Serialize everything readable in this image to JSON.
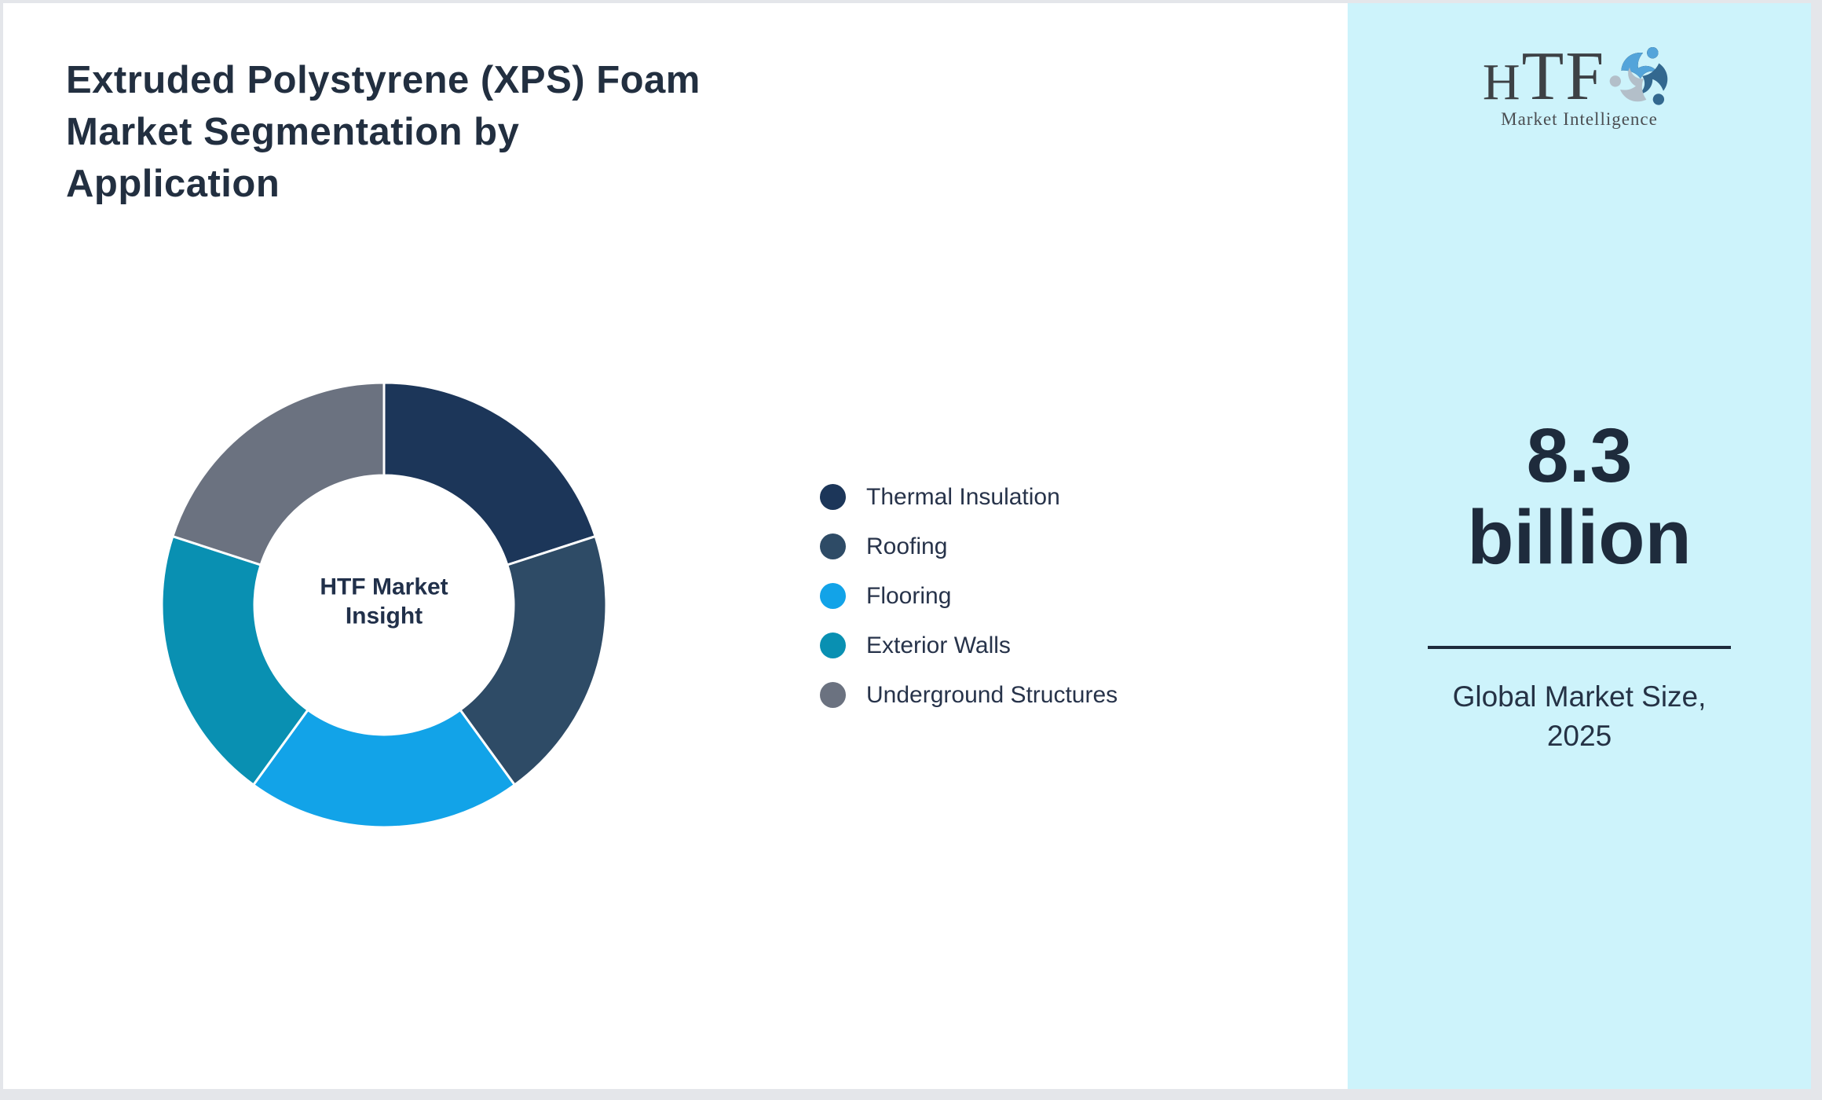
{
  "title": {
    "full": "Extruded Polystyrene (XPS) Foam Market Segmentation by Application",
    "lines": [
      "Extruded Polystyrene (XPS) Foam",
      "Market Segmentation by",
      "Application"
    ]
  },
  "chart_data": {
    "type": "pie",
    "subtype": "donut",
    "title": "Extruded Polystyrene (XPS) Foam Market Segmentation by Application",
    "center_label": "HTF Market Insight",
    "categories": [
      "Thermal Insulation",
      "Roofing",
      "Flooring",
      "Exterior Walls",
      "Underground Structures"
    ],
    "values": [
      20,
      20,
      20,
      20,
      20
    ],
    "values_note": "segments visually equal (~20% each), no numeric labels shown",
    "colors": [
      "#1c3659",
      "#2e4b66",
      "#12a3e8",
      "#0990b2",
      "#6b7280"
    ],
    "legend_position": "right",
    "start_angle_deg": 0,
    "direction": "clockwise",
    "inner_radius_ratio": 0.58,
    "separator_color": "#ffffff"
  },
  "sidebar": {
    "bg_color": "#cdf3fb",
    "logo": {
      "text": "HTF",
      "subtext": "Market Intelligence",
      "swirl_colors": [
        "#53a4da",
        "#b3bfc9",
        "#33688f"
      ]
    },
    "metric": {
      "value": "8.3 billion",
      "value_lines": [
        "8.3",
        "billion"
      ],
      "caption": "Global Market Size, 2025",
      "caption_lines": [
        "Global Market Size,",
        "2025"
      ]
    }
  },
  "theme": {
    "page_border": "#e4e6ea",
    "card_bg": "#ffffff",
    "dark_text": "#222f40"
  }
}
